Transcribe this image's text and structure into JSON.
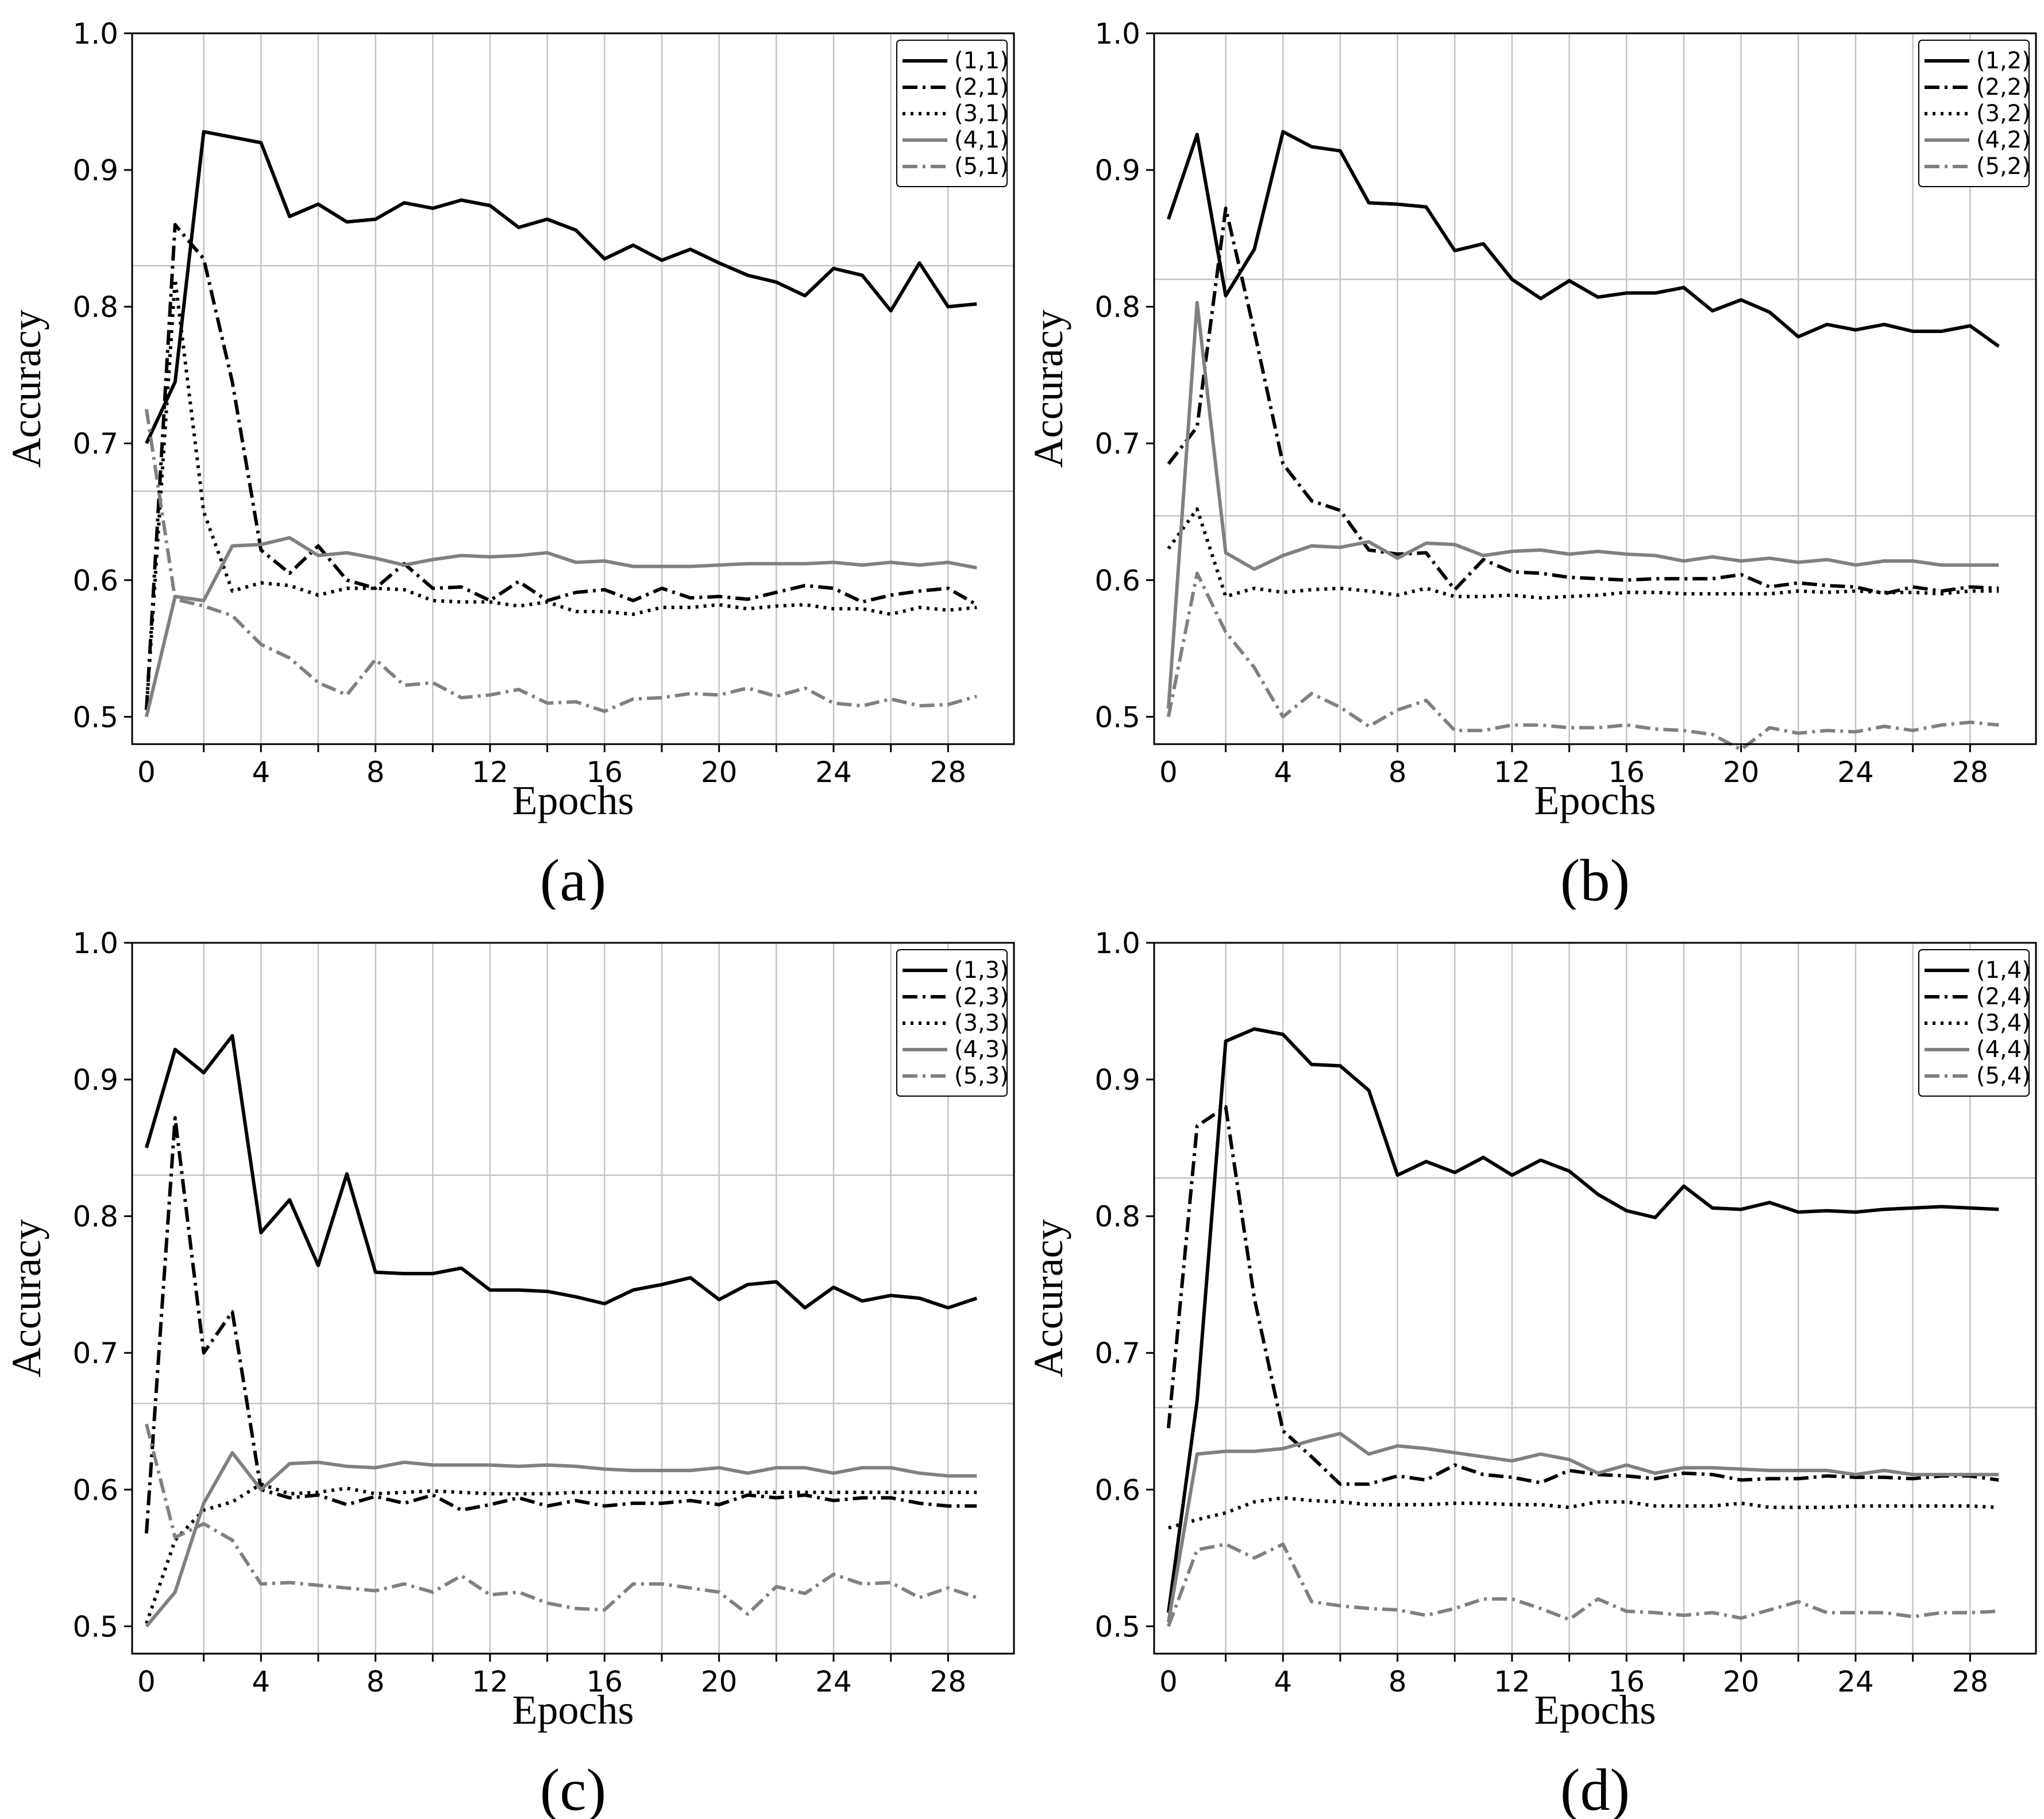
{
  "styles": [
    {
      "color": "#000000",
      "dash": "none",
      "width": 6
    },
    {
      "color": "#000000",
      "dash": "26,9,5,9",
      "width": 6
    },
    {
      "color": "#000000",
      "dash": "5,9",
      "width": 6
    },
    {
      "color": "#808080",
      "dash": "none",
      "width": 6
    },
    {
      "color": "#808080",
      "dash": "26,9,5,9",
      "width": 6
    }
  ],
  "chart_data": [
    {
      "type": "line",
      "caption": "(a)",
      "xlabel": "Epochs",
      "ylabel": "Accuracy",
      "xlim": [
        -0.5,
        30.3
      ],
      "ylim": [
        0.48,
        1.0
      ],
      "xticks": [
        0,
        4,
        8,
        12,
        16,
        20,
        24,
        28
      ],
      "yticks": [
        0.5,
        0.6,
        0.7,
        0.8,
        0.9,
        1.0
      ],
      "ytick_labels": [
        "0.5",
        "0.6",
        "0.7",
        "0.8",
        "0.9",
        "1.0"
      ],
      "hlines": [
        0.83,
        0.665
      ],
      "legend_position": "top-right",
      "x": [
        0,
        1,
        2,
        3,
        4,
        5,
        6,
        7,
        8,
        9,
        10,
        11,
        12,
        13,
        14,
        15,
        16,
        17,
        18,
        19,
        20,
        21,
        22,
        23,
        24,
        25,
        26,
        27,
        28,
        29
      ],
      "series": [
        {
          "name": "(1,1)",
          "values": [
            0.7,
            0.745,
            0.928,
            0.924,
            0.92,
            0.866,
            0.875,
            0.862,
            0.864,
            0.876,
            0.872,
            0.878,
            0.874,
            0.858,
            0.864,
            0.856,
            0.835,
            0.845,
            0.834,
            0.842,
            0.832,
            0.823,
            0.818,
            0.808,
            0.828,
            0.823,
            0.797,
            0.832,
            0.8,
            0.802
          ]
        },
        {
          "name": "(2,1)",
          "values": [
            0.505,
            0.86,
            0.835,
            0.745,
            0.622,
            0.605,
            0.625,
            0.6,
            0.594,
            0.612,
            0.594,
            0.595,
            0.585,
            0.599,
            0.585,
            0.591,
            0.593,
            0.585,
            0.594,
            0.587,
            0.588,
            0.586,
            0.591,
            0.596,
            0.594,
            0.584,
            0.589,
            0.592,
            0.594,
            0.582
          ]
        },
        {
          "name": "(3,1)",
          "values": [
            0.505,
            0.82,
            0.65,
            0.592,
            0.598,
            0.596,
            0.589,
            0.594,
            0.594,
            0.593,
            0.585,
            0.584,
            0.584,
            0.581,
            0.584,
            0.577,
            0.577,
            0.575,
            0.58,
            0.58,
            0.582,
            0.579,
            0.581,
            0.582,
            0.579,
            0.579,
            0.575,
            0.58,
            0.578,
            0.58
          ]
        },
        {
          "name": "(4,1)",
          "values": [
            0.5,
            0.588,
            0.585,
            0.625,
            0.626,
            0.631,
            0.618,
            0.62,
            0.616,
            0.611,
            0.615,
            0.618,
            0.617,
            0.618,
            0.62,
            0.613,
            0.614,
            0.61,
            0.61,
            0.61,
            0.611,
            0.612,
            0.612,
            0.612,
            0.613,
            0.611,
            0.613,
            0.611,
            0.613,
            0.609
          ]
        },
        {
          "name": "(5,1)",
          "values": [
            0.725,
            0.586,
            0.581,
            0.574,
            0.553,
            0.543,
            0.525,
            0.516,
            0.542,
            0.523,
            0.525,
            0.514,
            0.516,
            0.52,
            0.51,
            0.511,
            0.504,
            0.513,
            0.514,
            0.517,
            0.516,
            0.521,
            0.515,
            0.521,
            0.51,
            0.508,
            0.513,
            0.508,
            0.509,
            0.515
          ]
        }
      ]
    },
    {
      "type": "line",
      "caption": "(b)",
      "xlabel": "Epochs",
      "ylabel": "Accuracy",
      "xlim": [
        -0.5,
        30.3
      ],
      "ylim": [
        0.48,
        1.0
      ],
      "xticks": [
        0,
        4,
        8,
        12,
        16,
        20,
        24,
        28
      ],
      "yticks": [
        0.5,
        0.6,
        0.7,
        0.8,
        0.9,
        1.0
      ],
      "ytick_labels": [
        "0.5",
        "0.6",
        "0.7",
        "0.8",
        "0.9",
        "1.0"
      ],
      "hlines": [
        0.82,
        0.647
      ],
      "legend_position": "top-right",
      "x": [
        0,
        1,
        2,
        3,
        4,
        5,
        6,
        7,
        8,
        9,
        10,
        11,
        12,
        13,
        14,
        15,
        16,
        17,
        18,
        19,
        20,
        21,
        22,
        23,
        24,
        25,
        26,
        27,
        28,
        29
      ],
      "series": [
        {
          "name": "(1,2)",
          "values": [
            0.864,
            0.926,
            0.808,
            0.842,
            0.928,
            0.917,
            0.914,
            0.876,
            0.875,
            0.873,
            0.841,
            0.846,
            0.82,
            0.806,
            0.819,
            0.807,
            0.81,
            0.81,
            0.814,
            0.797,
            0.805,
            0.796,
            0.778,
            0.787,
            0.783,
            0.787,
            0.782,
            0.782,
            0.786,
            0.771
          ]
        },
        {
          "name": "(2,2)",
          "values": [
            0.685,
            0.712,
            0.872,
            0.782,
            0.685,
            0.658,
            0.651,
            0.622,
            0.619,
            0.62,
            0.593,
            0.615,
            0.606,
            0.605,
            0.602,
            0.601,
            0.6,
            0.601,
            0.601,
            0.601,
            0.604,
            0.595,
            0.598,
            0.596,
            0.595,
            0.59,
            0.595,
            0.592,
            0.595,
            0.594
          ]
        },
        {
          "name": "(3,2)",
          "values": [
            0.623,
            0.652,
            0.588,
            0.594,
            0.591,
            0.593,
            0.594,
            0.592,
            0.589,
            0.594,
            0.588,
            0.588,
            0.589,
            0.587,
            0.588,
            0.589,
            0.591,
            0.591,
            0.59,
            0.59,
            0.59,
            0.59,
            0.592,
            0.591,
            0.592,
            0.591,
            0.591,
            0.59,
            0.592,
            0.592
          ]
        },
        {
          "name": "(4,2)",
          "values": [
            0.506,
            0.803,
            0.62,
            0.608,
            0.618,
            0.625,
            0.624,
            0.628,
            0.616,
            0.627,
            0.626,
            0.618,
            0.621,
            0.622,
            0.619,
            0.621,
            0.619,
            0.618,
            0.614,
            0.617,
            0.614,
            0.616,
            0.613,
            0.615,
            0.611,
            0.614,
            0.614,
            0.611,
            0.611,
            0.611
          ]
        },
        {
          "name": "(5,2)",
          "values": [
            0.5,
            0.605,
            0.562,
            0.536,
            0.5,
            0.517,
            0.507,
            0.493,
            0.505,
            0.512,
            0.49,
            0.49,
            0.494,
            0.494,
            0.492,
            0.492,
            0.494,
            0.491,
            0.49,
            0.487,
            0.476,
            0.492,
            0.488,
            0.49,
            0.489,
            0.493,
            0.49,
            0.494,
            0.496,
            0.494
          ]
        }
      ]
    },
    {
      "type": "line",
      "caption": "(c)",
      "xlabel": "Epochs",
      "ylabel": "Accuracy",
      "xlim": [
        -0.5,
        30.3
      ],
      "ylim": [
        0.48,
        1.0
      ],
      "xticks": [
        0,
        4,
        8,
        12,
        16,
        20,
        24,
        28
      ],
      "yticks": [
        0.5,
        0.6,
        0.7,
        0.8,
        0.9,
        1.0
      ],
      "ytick_labels": [
        "0.5",
        "0.6",
        "0.7",
        "0.8",
        "0.9",
        "1.0"
      ],
      "hlines": [
        0.83,
        0.663
      ],
      "legend_position": "top-right",
      "x": [
        0,
        1,
        2,
        3,
        4,
        5,
        6,
        7,
        8,
        9,
        10,
        11,
        12,
        13,
        14,
        15,
        16,
        17,
        18,
        19,
        20,
        21,
        22,
        23,
        24,
        25,
        26,
        27,
        28,
        29
      ],
      "series": [
        {
          "name": "(1,3)",
          "values": [
            0.85,
            0.922,
            0.905,
            0.932,
            0.788,
            0.812,
            0.764,
            0.831,
            0.759,
            0.758,
            0.758,
            0.762,
            0.746,
            0.746,
            0.745,
            0.741,
            0.736,
            0.746,
            0.75,
            0.755,
            0.739,
            0.75,
            0.752,
            0.733,
            0.748,
            0.738,
            0.742,
            0.74,
            0.733,
            0.74
          ]
        },
        {
          "name": "(2,3)",
          "values": [
            0.568,
            0.872,
            0.7,
            0.73,
            0.6,
            0.594,
            0.596,
            0.589,
            0.595,
            0.59,
            0.596,
            0.585,
            0.589,
            0.594,
            0.588,
            0.592,
            0.588,
            0.59,
            0.59,
            0.592,
            0.589,
            0.596,
            0.594,
            0.596,
            0.592,
            0.594,
            0.594,
            0.59,
            0.588,
            0.588
          ]
        },
        {
          "name": "(3,3)",
          "values": [
            0.502,
            0.563,
            0.585,
            0.591,
            0.604,
            0.597,
            0.598,
            0.601,
            0.597,
            0.598,
            0.599,
            0.598,
            0.597,
            0.597,
            0.597,
            0.598,
            0.598,
            0.598,
            0.598,
            0.598,
            0.598,
            0.598,
            0.598,
            0.598,
            0.598,
            0.598,
            0.598,
            0.598,
            0.598,
            0.598
          ]
        },
        {
          "name": "(4,3)",
          "values": [
            0.5,
            0.525,
            0.59,
            0.627,
            0.6,
            0.619,
            0.62,
            0.617,
            0.616,
            0.62,
            0.618,
            0.618,
            0.618,
            0.617,
            0.618,
            0.617,
            0.615,
            0.614,
            0.614,
            0.614,
            0.616,
            0.612,
            0.616,
            0.616,
            0.612,
            0.616,
            0.616,
            0.612,
            0.61,
            0.61
          ]
        },
        {
          "name": "(5,3)",
          "values": [
            0.648,
            0.565,
            0.575,
            0.563,
            0.531,
            0.532,
            0.53,
            0.528,
            0.526,
            0.531,
            0.525,
            0.537,
            0.523,
            0.525,
            0.517,
            0.513,
            0.512,
            0.531,
            0.531,
            0.528,
            0.525,
            0.509,
            0.529,
            0.524,
            0.538,
            0.531,
            0.532,
            0.521,
            0.528,
            0.521
          ]
        }
      ]
    },
    {
      "type": "line",
      "caption": "(d)",
      "xlabel": "Epochs",
      "ylabel": "Accuracy",
      "xlim": [
        -0.5,
        30.3
      ],
      "ylim": [
        0.48,
        1.0
      ],
      "xticks": [
        0,
        4,
        8,
        12,
        16,
        20,
        24,
        28
      ],
      "yticks": [
        0.5,
        0.6,
        0.7,
        0.8,
        0.9,
        1.0
      ],
      "ytick_labels": [
        "0.5",
        "0.6",
        "0.7",
        "0.8",
        "0.9",
        "1.0"
      ],
      "hlines": [
        0.828,
        0.66
      ],
      "legend_position": "top-right",
      "x": [
        0,
        1,
        2,
        3,
        4,
        5,
        6,
        7,
        8,
        9,
        10,
        11,
        12,
        13,
        14,
        15,
        16,
        17,
        18,
        19,
        20,
        21,
        22,
        23,
        24,
        25,
        26,
        27,
        28,
        29
      ],
      "series": [
        {
          "name": "(1,4)",
          "values": [
            0.51,
            0.665,
            0.928,
            0.937,
            0.933,
            0.911,
            0.91,
            0.892,
            0.83,
            0.84,
            0.832,
            0.843,
            0.83,
            0.841,
            0.833,
            0.816,
            0.804,
            0.799,
            0.822,
            0.806,
            0.805,
            0.81,
            0.803,
            0.804,
            0.803,
            0.805,
            0.806,
            0.807,
            0.806,
            0.805
          ]
        },
        {
          "name": "(2,4)",
          "values": [
            0.645,
            0.866,
            0.88,
            0.74,
            0.643,
            0.624,
            0.604,
            0.604,
            0.61,
            0.607,
            0.618,
            0.611,
            0.609,
            0.605,
            0.614,
            0.611,
            0.61,
            0.608,
            0.612,
            0.611,
            0.607,
            0.608,
            0.608,
            0.61,
            0.609,
            0.609,
            0.608,
            0.61,
            0.61,
            0.607
          ]
        },
        {
          "name": "(3,4)",
          "values": [
            0.572,
            0.578,
            0.583,
            0.591,
            0.594,
            0.592,
            0.591,
            0.589,
            0.589,
            0.589,
            0.59,
            0.59,
            0.589,
            0.589,
            0.587,
            0.591,
            0.591,
            0.588,
            0.588,
            0.588,
            0.59,
            0.587,
            0.587,
            0.587,
            0.588,
            0.588,
            0.588,
            0.588,
            0.588,
            0.587
          ]
        },
        {
          "name": "(4,4)",
          "values": [
            0.503,
            0.626,
            0.628,
            0.628,
            0.63,
            0.636,
            0.641,
            0.626,
            0.632,
            0.63,
            0.627,
            0.624,
            0.621,
            0.626,
            0.622,
            0.612,
            0.618,
            0.612,
            0.616,
            0.616,
            0.615,
            0.614,
            0.614,
            0.614,
            0.611,
            0.614,
            0.611,
            0.611,
            0.611,
            0.611
          ]
        },
        {
          "name": "(5,4)",
          "values": [
            0.5,
            0.556,
            0.56,
            0.55,
            0.56,
            0.518,
            0.515,
            0.513,
            0.512,
            0.508,
            0.513,
            0.52,
            0.52,
            0.513,
            0.505,
            0.52,
            0.511,
            0.51,
            0.508,
            0.51,
            0.506,
            0.512,
            0.518,
            0.51,
            0.51,
            0.51,
            0.507,
            0.51,
            0.51,
            0.511
          ]
        }
      ]
    }
  ]
}
